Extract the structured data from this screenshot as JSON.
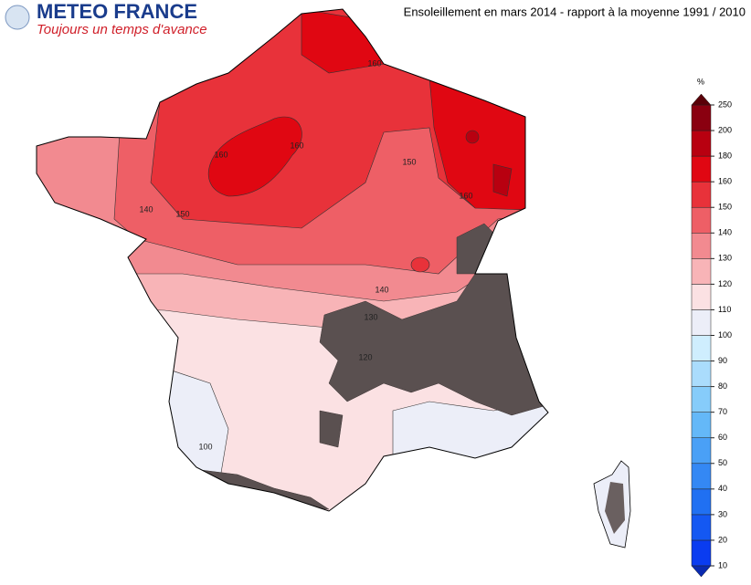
{
  "header": {
    "brand": "METEO FRANCE",
    "slogan": "Toujours un temps d'avance"
  },
  "title": "Ensoleillement en mars 2014 - rapport à la moyenne 1991 / 2010",
  "legend": {
    "unit": "%",
    "ticks": [
      10,
      20,
      30,
      40,
      50,
      60,
      70,
      80,
      90,
      100,
      110,
      120,
      130,
      140,
      150,
      160,
      180,
      200,
      250
    ],
    "colors": [
      "#0a3cf0",
      "#1458f2",
      "#2070f2",
      "#3488f4",
      "#4aa0f6",
      "#64b8f8",
      "#86ccfa",
      "#aadcfc",
      "#cfeefe",
      "#eceef8",
      "#fbe1e3",
      "#f8b4b7",
      "#f28a90",
      "#ee5f66",
      "#e8323a",
      "#e00712",
      "#b80010",
      "#8a0010"
    ],
    "under_color": "#0a2ab0",
    "over_color": "#5a0008"
  },
  "map": {
    "contour_labels": [
      160,
      160,
      150,
      150,
      160,
      160,
      140,
      140,
      130,
      120,
      100
    ]
  }
}
